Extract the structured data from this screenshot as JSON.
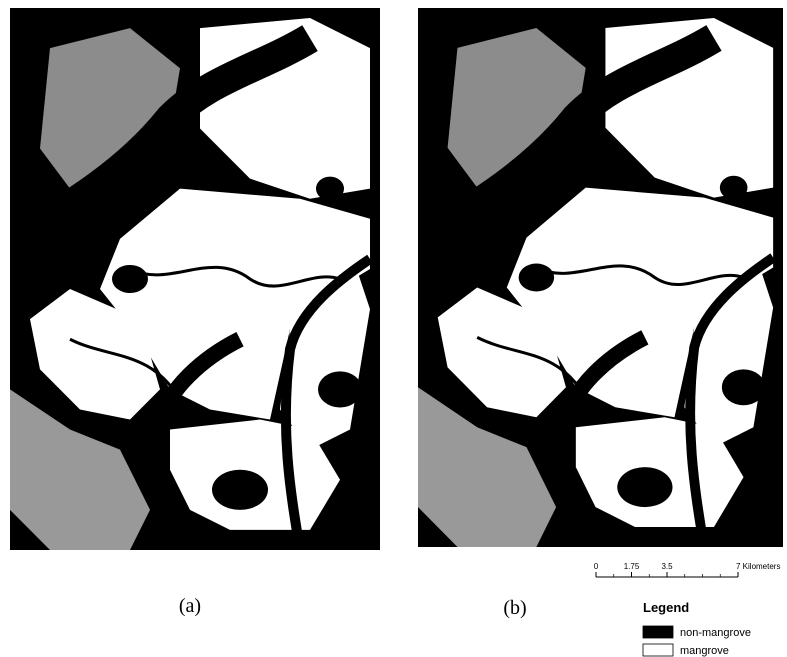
{
  "panels": [
    {
      "label": "(a)"
    },
    {
      "label": "(b)"
    }
  ],
  "scale_bar": {
    "ticks": [
      0,
      1.75,
      3.5,
      {
        "value": 7,
        "label": "7 Kilometers"
      }
    ]
  },
  "legend": {
    "title": "Legend",
    "items": [
      {
        "label": "non-mangrove",
        "color": "#000000"
      },
      {
        "label": "mangrove",
        "color": "#ffffff"
      }
    ]
  }
}
